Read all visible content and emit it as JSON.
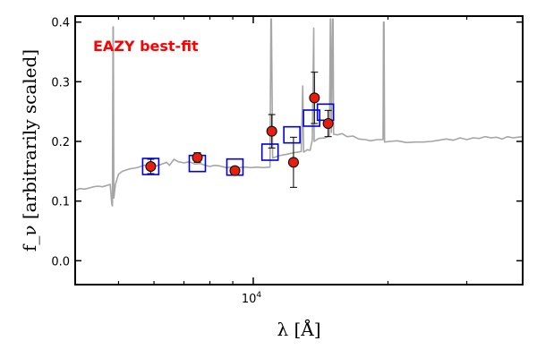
{
  "chart_data": {
    "type": "scatter",
    "annotation": "EAZY best-fit",
    "xlabel": "λ [Å]",
    "ylabel": "f_ν [arbitrarily scaled]",
    "x_scale": "log",
    "xlim": [
      4000,
      40000
    ],
    "ylim": [
      -0.04,
      0.41
    ],
    "x_tick_labels": [
      {
        "value": 10000,
        "label": "10",
        "exponent": "4"
      }
    ],
    "x_minor_ticks": [
      5000,
      6000,
      7000,
      8000,
      9000,
      20000,
      30000
    ],
    "y_ticks": [
      0.0,
      0.1,
      0.2,
      0.3,
      0.4
    ],
    "y_tick_labels": [
      "0.0",
      "0.1",
      "0.2",
      "0.3",
      "0.4"
    ],
    "grid": false,
    "series": [
      {
        "kind": "spectrum",
        "color": "#a6a6a6",
        "points": [
          [
            4000,
            0.118
          ],
          [
            4100,
            0.121
          ],
          [
            4200,
            0.12
          ],
          [
            4300,
            0.122
          ],
          [
            4400,
            0.124
          ],
          [
            4500,
            0.125
          ],
          [
            4600,
            0.124
          ],
          [
            4700,
            0.126
          ],
          [
            4790,
            0.128
          ],
          [
            4830,
            0.095
          ],
          [
            4845,
            0.092
          ],
          [
            4860,
            0.392
          ],
          [
            4867,
            0.392
          ],
          [
            4880,
            0.105
          ],
          [
            4920,
            0.128
          ],
          [
            5000,
            0.145
          ],
          [
            5100,
            0.15
          ],
          [
            5200,
            0.152
          ],
          [
            5300,
            0.154
          ],
          [
            5400,
            0.155
          ],
          [
            5500,
            0.156
          ],
          [
            5600,
            0.158
          ],
          [
            5700,
            0.16
          ],
          [
            5800,
            0.16
          ],
          [
            5900,
            0.155
          ],
          [
            6000,
            0.158
          ],
          [
            6200,
            0.161
          ],
          [
            6400,
            0.165
          ],
          [
            6500,
            0.16
          ],
          [
            6650,
            0.17
          ],
          [
            6800,
            0.166
          ],
          [
            7000,
            0.164
          ],
          [
            7200,
            0.166
          ],
          [
            7400,
            0.162
          ],
          [
            7600,
            0.163
          ],
          [
            7800,
            0.16
          ],
          [
            8000,
            0.158
          ],
          [
            8200,
            0.16
          ],
          [
            8400,
            0.159
          ],
          [
            8700,
            0.156
          ],
          [
            9000,
            0.157
          ],
          [
            9300,
            0.156
          ],
          [
            9600,
            0.157
          ],
          [
            9900,
            0.156
          ],
          [
            10200,
            0.157
          ],
          [
            10500,
            0.156
          ],
          [
            10900,
            0.157
          ],
          [
            10950,
            0.405
          ],
          [
            10980,
            0.405
          ],
          [
            11050,
            0.172
          ],
          [
            11400,
            0.176
          ],
          [
            11800,
            0.178
          ],
          [
            12300,
            0.181
          ],
          [
            12800,
            0.183
          ],
          [
            12900,
            0.293
          ],
          [
            12960,
            0.182
          ],
          [
            13200,
            0.186
          ],
          [
            13400,
            0.185
          ],
          [
            13550,
            0.203
          ],
          [
            13650,
            0.39
          ],
          [
            13680,
            0.2
          ],
          [
            14000,
            0.205
          ],
          [
            14500,
            0.206
          ],
          [
            14800,
            0.21
          ],
          [
            14870,
            0.405
          ],
          [
            14900,
            0.405
          ],
          [
            14950,
            0.215
          ],
          [
            15050,
            0.405
          ],
          [
            15080,
            0.405
          ],
          [
            15120,
            0.212
          ],
          [
            15400,
            0.211
          ],
          [
            15800,
            0.213
          ],
          [
            16200,
            0.208
          ],
          [
            16700,
            0.209
          ],
          [
            17200,
            0.204
          ],
          [
            17800,
            0.203
          ],
          [
            18300,
            0.201
          ],
          [
            18900,
            0.203
          ],
          [
            19500,
            0.203
          ],
          [
            19550,
            0.4
          ],
          [
            19600,
            0.4
          ],
          [
            19650,
            0.199
          ],
          [
            20200,
            0.2
          ],
          [
            21000,
            0.201
          ],
          [
            22000,
            0.198
          ],
          [
            23000,
            0.199
          ],
          [
            24000,
            0.199
          ],
          [
            25000,
            0.2
          ],
          [
            26000,
            0.202
          ],
          [
            27000,
            0.204
          ],
          [
            28000,
            0.202
          ],
          [
            29000,
            0.206
          ],
          [
            30000,
            0.203
          ],
          [
            31000,
            0.206
          ],
          [
            32000,
            0.205
          ],
          [
            33000,
            0.208
          ],
          [
            34000,
            0.206
          ],
          [
            35000,
            0.207
          ],
          [
            36000,
            0.204
          ],
          [
            37000,
            0.208
          ],
          [
            38000,
            0.206
          ],
          [
            39000,
            0.207
          ],
          [
            40000,
            0.208
          ]
        ]
      },
      {
        "kind": "model_photometry",
        "marker": "open-square",
        "color": "#0000dd",
        "points": [
          [
            5900,
            0.158
          ],
          [
            7500,
            0.163
          ],
          [
            9100,
            0.157
          ],
          [
            10900,
            0.182
          ],
          [
            12200,
            0.211
          ],
          [
            13500,
            0.239
          ],
          [
            14500,
            0.249
          ]
        ]
      },
      {
        "kind": "observed_photometry",
        "marker": "filled-circle",
        "color": "#e51e10",
        "points": [
          [
            5900,
            0.158,
            0.012
          ],
          [
            7500,
            0.173,
            0.008
          ],
          [
            9100,
            0.151,
            0.004
          ],
          [
            11000,
            0.217,
            0.028
          ],
          [
            12300,
            0.165,
            0.042
          ],
          [
            13700,
            0.273,
            0.043
          ],
          [
            14700,
            0.23,
            0.022
          ]
        ]
      }
    ]
  }
}
